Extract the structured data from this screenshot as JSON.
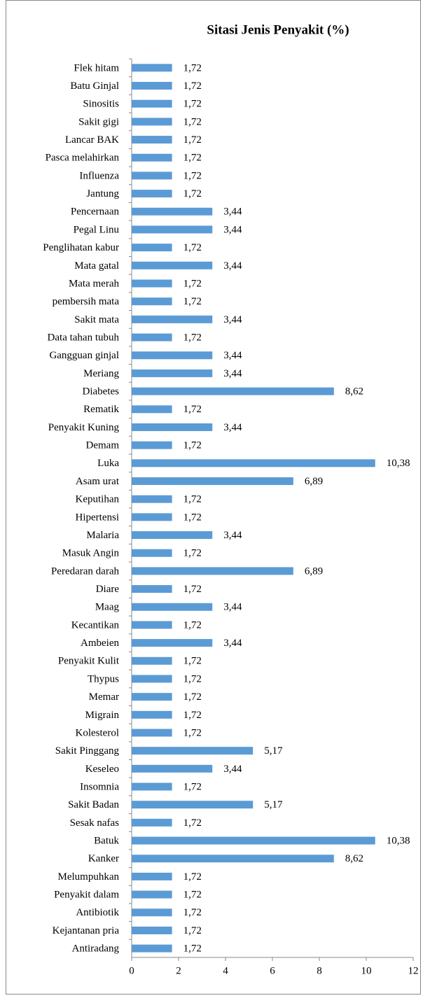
{
  "chart_data": {
    "type": "bar",
    "orientation": "horizontal",
    "title": "Sitasi Jenis Penyakit (%)",
    "categories": [
      "Flek hitam",
      "Batu Ginjal",
      "Sinositis",
      "Sakit gigi",
      "Lancar BAK",
      "Pasca melahirkan",
      "Influenza",
      "Jantung",
      "Pencernaan",
      "Pegal Linu",
      "Penglihatan kabur",
      "Mata gatal",
      "Mata merah",
      "pembersih mata",
      "Sakit mata",
      "Data tahan tubuh",
      "Gangguan ginjal",
      "Meriang",
      "Diabetes",
      "Rematik",
      "Penyakit Kuning",
      "Demam",
      "Luka",
      "Asam urat",
      "Keputihan",
      "Hipertensi",
      "Malaria",
      "Masuk Angin",
      "Peredaran darah",
      "Diare",
      "Maag",
      "Kecantikan",
      "Ambeien",
      "Penyakit Kulit",
      "Thypus",
      "Memar",
      "Migrain",
      "Kolesterol",
      "Sakit Pinggang",
      "Keseleo",
      "Insomnia",
      "Sakit Badan",
      "Sesak nafas",
      "Batuk",
      "Kanker",
      "Melumpuhkan",
      "Penyakit dalam",
      "Antibiotik",
      "Kejantanan pria",
      "Antiradang"
    ],
    "values": [
      1.72,
      1.72,
      1.72,
      1.72,
      1.72,
      1.72,
      1.72,
      1.72,
      3.44,
      3.44,
      1.72,
      3.44,
      1.72,
      1.72,
      3.44,
      1.72,
      3.44,
      3.44,
      8.62,
      1.72,
      3.44,
      1.72,
      10.38,
      6.89,
      1.72,
      1.72,
      3.44,
      1.72,
      6.89,
      1.72,
      3.44,
      1.72,
      3.44,
      1.72,
      1.72,
      1.72,
      1.72,
      1.72,
      5.17,
      3.44,
      1.72,
      5.17,
      1.72,
      10.38,
      8.62,
      1.72,
      1.72,
      1.72,
      1.72,
      1.72
    ],
    "value_labels": [
      "1,72",
      "1,72",
      "1,72",
      "1,72",
      "1,72",
      "1,72",
      "1,72",
      "1,72",
      "3,44",
      "3,44",
      "1,72",
      "3,44",
      "1,72",
      "1,72",
      "3,44",
      "1,72",
      "3,44",
      "3,44",
      "8,62",
      "1,72",
      "3,44",
      "1,72",
      "10,38",
      "6,89",
      "1,72",
      "1,72",
      "3,44",
      "1,72",
      "6,89",
      "1,72",
      "3,44",
      "1,72",
      "3,44",
      "1,72",
      "1,72",
      "1,72",
      "1,72",
      "1,72",
      "5,17",
      "3,44",
      "1,72",
      "5,17",
      "1,72",
      "10,38",
      "8,62",
      "1,72",
      "1,72",
      "1,72",
      "1,72",
      "1,72"
    ],
    "color": "#5b9bd5",
    "xlim": [
      0,
      12
    ],
    "xticks": [
      0,
      2,
      4,
      6,
      8,
      10,
      12
    ],
    "grid": false
  }
}
